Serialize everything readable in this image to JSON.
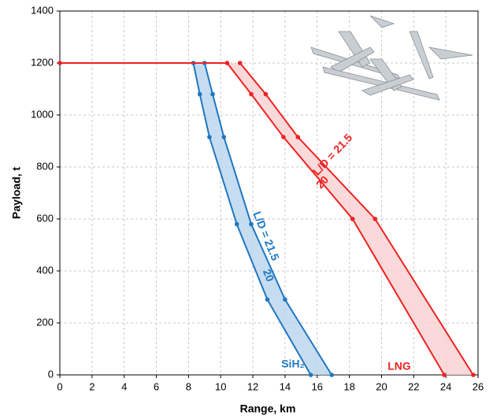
{
  "chart_data": {
    "type": "line",
    "xlabel": "Range, km",
    "ylabel": "Payload, t",
    "xlim": [
      0,
      26
    ],
    "xticks": [
      0,
      2,
      4,
      6,
      8,
      10,
      12,
      14,
      16,
      18,
      20,
      22,
      24,
      26
    ],
    "ylim": [
      0,
      1400
    ],
    "yticks": [
      0,
      200,
      400,
      600,
      800,
      1000,
      1200,
      1400
    ],
    "grid": true,
    "series": [
      {
        "color": "#1f77c0",
        "x": [
          8.3,
          8.7,
          9.3,
          11.0,
          12.9,
          15.6
        ],
        "y": [
          1200,
          1080,
          915,
          580,
          290,
          0
        ]
      },
      {
        "color": "#1f77c0",
        "x": [
          9.0,
          9.5,
          10.2,
          11.9,
          14.0,
          16.9
        ],
        "y": [
          1200,
          1080,
          915,
          580,
          290,
          0
        ]
      },
      {
        "color": "#ee2222",
        "x": [
          0,
          10.4,
          11.9,
          13.9,
          18.2,
          23.9
        ],
        "y": [
          1200,
          1200,
          1080,
          915,
          600,
          0
        ]
      },
      {
        "color": "#ee2222",
        "x": [
          11.2,
          12.8,
          14.8,
          19.6,
          25.7
        ],
        "y": [
          1200,
          1080,
          915,
          600,
          0
        ]
      }
    ],
    "bands": [
      {
        "color": "#b8d3ee",
        "series": [
          0,
          1
        ]
      },
      {
        "color": "#f7d0d0",
        "series": [
          2,
          3
        ]
      }
    ],
    "annotations": [
      {
        "text": "L/D = 21.5",
        "color": "#1f77c0"
      },
      {
        "text": "20",
        "color": "#1f77c0"
      },
      {
        "text": "L/D = 21.5",
        "color": "#ee2222"
      },
      {
        "text": "20",
        "color": "#ee2222"
      },
      {
        "text": "SiH₂",
        "color": "#1f77c0"
      },
      {
        "text": "LNG",
        "color": "#ee2222"
      }
    ]
  }
}
